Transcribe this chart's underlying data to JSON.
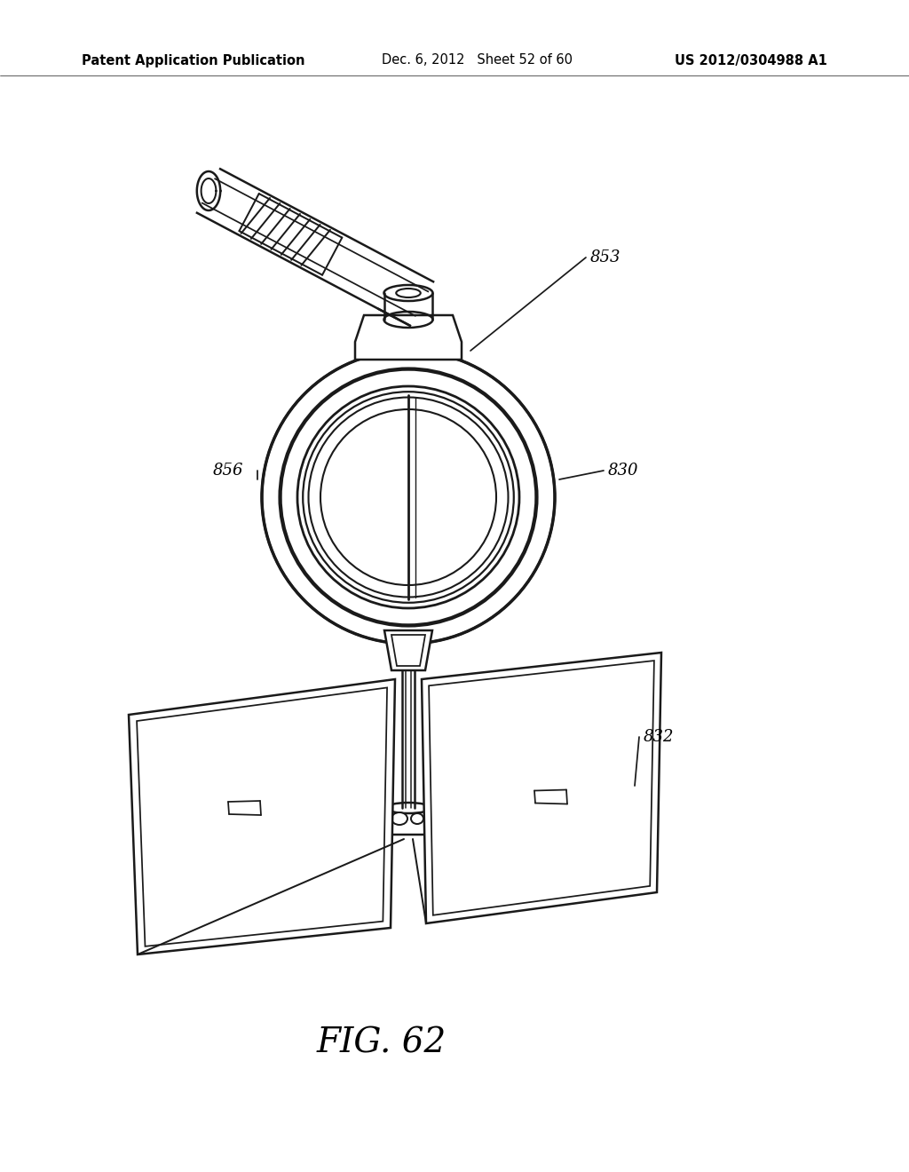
{
  "background_color": "#ffffff",
  "header_left": "Patent Application Publication",
  "header_mid": "Dec. 6, 2012   Sheet 52 of 60",
  "header_right": "US 2012/0304988 A1",
  "figure_label": "FIG. 62",
  "line_color": "#1a1a1a",
  "line_width": 1.8,
  "header_fontsize": 10.5,
  "label_fontsize": 13
}
